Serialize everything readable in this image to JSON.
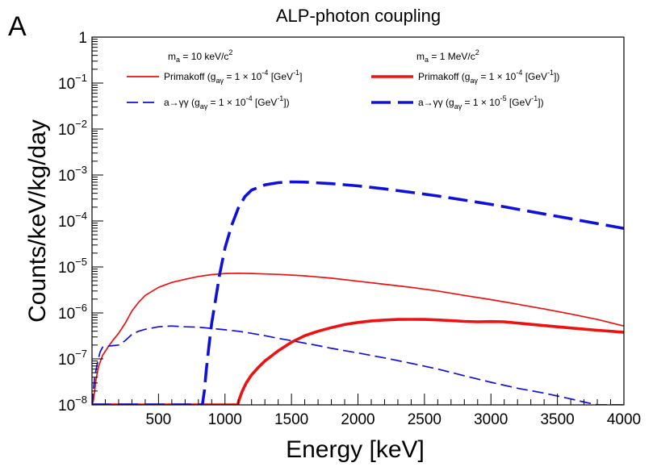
{
  "chart_data": {
    "type": "line",
    "panel_label": "A",
    "title": "ALP-photon coupling",
    "xlabel": "Energy [keV]",
    "ylabel": "Counts/keV/kg/day",
    "xlim": [
      0,
      4000
    ],
    "ylim": [
      1e-08,
      1
    ],
    "yscale": "log",
    "x_ticks": [
      500,
      1000,
      1500,
      2000,
      2500,
      3000,
      3500,
      4000
    ],
    "y_ticks": [
      {
        "value": 1,
        "mant": "1",
        "exp": ""
      },
      {
        "value": 0.1,
        "mant": "10",
        "exp": "−1"
      },
      {
        "value": 0.01,
        "mant": "10",
        "exp": "−2"
      },
      {
        "value": 0.001,
        "mant": "10",
        "exp": "−3"
      },
      {
        "value": 0.0001,
        "mant": "10",
        "exp": "−4"
      },
      {
        "value": 1e-05,
        "mant": "10",
        "exp": "−5"
      },
      {
        "value": 1e-06,
        "mant": "10",
        "exp": "−6"
      },
      {
        "value": 1e-07,
        "mant": "10",
        "exp": "−7"
      },
      {
        "value": 1e-08,
        "mant": "10",
        "exp": "−8"
      }
    ],
    "legend": {
      "headers": [
        {
          "text": "m",
          "sub": "a",
          "rest": " = 10 keV/c",
          "sup": "2"
        },
        {
          "text": "m",
          "sub": "a",
          "rest": " = 1 MeV/c",
          "sup": "2"
        }
      ],
      "entries": [
        {
          "series": 0,
          "pre": "Primakoff (g",
          "sub": "aγ",
          "mid": " = 1  × 10",
          "sup": "-4",
          "post": " [GeV",
          "sup2": "-1",
          "end": "]"
        },
        {
          "series": 1,
          "pre": "Primakoff (g",
          "sub": "aγ",
          "mid": " = 1  × 10",
          "sup": "-4",
          "post": " [GeV",
          "sup2": "-1",
          "end": "])"
        },
        {
          "series": 2,
          "pre": "a→γγ (g",
          "sub": "aγ",
          "mid": " = 1  × 10",
          "sup": "-4",
          "post": " [GeV",
          "sup2": "-1",
          "end": "])"
        },
        {
          "series": 3,
          "pre": "a→γγ (g",
          "sub": "aγ",
          "mid": " = 1  × 10",
          "sup": "-5",
          "post": " [GeV",
          "sup2": "-1",
          "end": "])"
        }
      ]
    },
    "series": [
      {
        "name": "Primakoff 10 keV",
        "color": "#ee1111",
        "style": "solid-thin",
        "points": [
          [
            0,
            1e-08
          ],
          [
            10,
            1.2e-08
          ],
          [
            20,
            2e-08
          ],
          [
            30,
            3.5e-08
          ],
          [
            50,
            7e-08
          ],
          [
            80,
            1.2e-07
          ],
          [
            120,
            1.8e-07
          ],
          [
            160,
            2.6e-07
          ],
          [
            200,
            3.6e-07
          ],
          [
            250,
            6e-07
          ],
          [
            300,
            1.1e-06
          ],
          [
            350,
            1.7e-06
          ],
          [
            400,
            2.4e-06
          ],
          [
            500,
            3.6e-06
          ],
          [
            600,
            4.6e-06
          ],
          [
            700,
            5.4e-06
          ],
          [
            800,
            6.2e-06
          ],
          [
            900,
            6.8e-06
          ],
          [
            1000,
            7.2e-06
          ],
          [
            1100,
            7.3e-06
          ],
          [
            1200,
            7.2e-06
          ],
          [
            1400,
            6.9e-06
          ],
          [
            1600,
            6.4e-06
          ],
          [
            1800,
            5.7e-06
          ],
          [
            2000,
            4.9e-06
          ],
          [
            2200,
            4.2e-06
          ],
          [
            2400,
            3.6e-06
          ],
          [
            2600,
            3e-06
          ],
          [
            2800,
            2.4e-06
          ],
          [
            3000,
            1.95e-06
          ],
          [
            3200,
            1.55e-06
          ],
          [
            3400,
            1.22e-06
          ],
          [
            3600,
            9.5e-07
          ],
          [
            3800,
            7.2e-07
          ],
          [
            4000,
            5.2e-07
          ]
        ]
      },
      {
        "name": "Primakoff 1 MeV",
        "color": "#ee1111",
        "style": "solid-thick",
        "points": [
          [
            0,
            1e-08
          ],
          [
            1095,
            1e-08
          ],
          [
            1110,
            1.4e-08
          ],
          [
            1130,
            2e-08
          ],
          [
            1160,
            3e-08
          ],
          [
            1200,
            4.5e-08
          ],
          [
            1250,
            6.5e-08
          ],
          [
            1300,
            9e-08
          ],
          [
            1400,
            1.5e-07
          ],
          [
            1500,
            2.3e-07
          ],
          [
            1600,
            3.2e-07
          ],
          [
            1700,
            4e-07
          ],
          [
            1800,
            4.8e-07
          ],
          [
            1900,
            5.6e-07
          ],
          [
            2000,
            6.2e-07
          ],
          [
            2100,
            6.7e-07
          ],
          [
            2200,
            7e-07
          ],
          [
            2300,
            7.2e-07
          ],
          [
            2400,
            7.25e-07
          ],
          [
            2500,
            7.2e-07
          ],
          [
            2600,
            7.05e-07
          ],
          [
            2700,
            6.8e-07
          ],
          [
            2800,
            6.55e-07
          ],
          [
            2900,
            6.4e-07
          ],
          [
            3000,
            6.5e-07
          ],
          [
            3100,
            6.4e-07
          ],
          [
            3200,
            6e-07
          ],
          [
            3400,
            5.3e-07
          ],
          [
            3600,
            4.7e-07
          ],
          [
            3800,
            4.2e-07
          ],
          [
            4000,
            3.8e-07
          ]
        ]
      },
      {
        "name": "a→γγ 10 keV",
        "color": "#1010dd",
        "style": "dash-thin",
        "points": [
          [
            0,
            1e-08
          ],
          [
            10,
            2e-08
          ],
          [
            20,
            4e-08
          ],
          [
            40,
            8e-08
          ],
          [
            60,
            1.4e-07
          ],
          [
            80,
            1.8e-07
          ],
          [
            120,
            1.9e-07
          ],
          [
            160,
            1.95e-07
          ],
          [
            200,
            2e-07
          ],
          [
            250,
            2.5e-07
          ],
          [
            300,
            3.4e-07
          ],
          [
            350,
            4e-07
          ],
          [
            400,
            4.4e-07
          ],
          [
            500,
            5e-07
          ],
          [
            600,
            5.2e-07
          ],
          [
            700,
            5e-07
          ],
          [
            800,
            4.9e-07
          ],
          [
            900,
            4.6e-07
          ],
          [
            1000,
            4.3e-07
          ],
          [
            1100,
            4e-07
          ],
          [
            1200,
            3.6e-07
          ],
          [
            1300,
            3.2e-07
          ],
          [
            1400,
            2.8e-07
          ],
          [
            1500,
            2.5e-07
          ],
          [
            1600,
            2.2e-07
          ],
          [
            1700,
            1.95e-07
          ],
          [
            1800,
            1.7e-07
          ],
          [
            2000,
            1.35e-07
          ],
          [
            2200,
            1.05e-07
          ],
          [
            2400,
            8e-08
          ],
          [
            2600,
            6e-08
          ],
          [
            2800,
            4.3e-08
          ],
          [
            3000,
            3.1e-08
          ],
          [
            3200,
            2.3e-08
          ],
          [
            3400,
            1.8e-08
          ],
          [
            3600,
            1.35e-08
          ],
          [
            3700,
            1.15e-08
          ],
          [
            3800,
            1e-08
          ],
          [
            4000,
            1e-08
          ]
        ]
      },
      {
        "name": "a→γγ 1 MeV",
        "color": "#1010dd",
        "style": "dash-thick",
        "points": [
          [
            0,
            1e-08
          ],
          [
            830,
            1e-08
          ],
          [
            845,
            2e-08
          ],
          [
            860,
            6e-08
          ],
          [
            880,
            2e-07
          ],
          [
            900,
            6e-07
          ],
          [
            930,
            2e-06
          ],
          [
            960,
            7e-06
          ],
          [
            1000,
            2.6e-05
          ],
          [
            1050,
            8e-05
          ],
          [
            1100,
            0.00019
          ],
          [
            1150,
            0.00034
          ],
          [
            1200,
            0.00047
          ],
          [
            1300,
            0.00061
          ],
          [
            1400,
            0.00068
          ],
          [
            1500,
            0.00071
          ],
          [
            1600,
            0.0007
          ],
          [
            1800,
            0.00065
          ],
          [
            2000,
            0.00058
          ],
          [
            2200,
            0.0005
          ],
          [
            2400,
            0.00042
          ],
          [
            2600,
            0.00035
          ],
          [
            2800,
            0.000285
          ],
          [
            3000,
            0.00023
          ],
          [
            3200,
            0.00018
          ],
          [
            3400,
            0.000142
          ],
          [
            3600,
            0.000112
          ],
          [
            3800,
            8.8e-05
          ],
          [
            4000,
            6.9e-05
          ]
        ]
      }
    ]
  }
}
